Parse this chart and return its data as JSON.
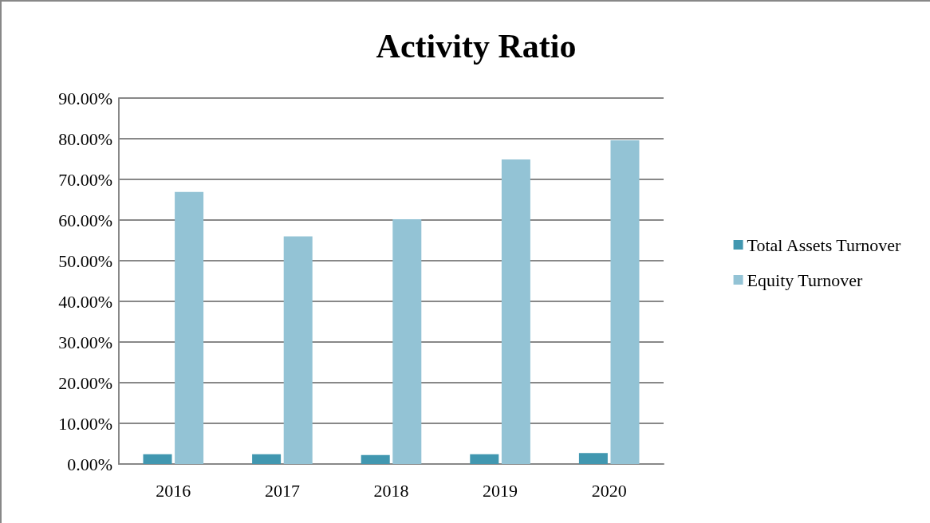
{
  "chart_data": {
    "type": "bar",
    "title": "Activity Ratio",
    "categories": [
      "2016",
      "2017",
      "2018",
      "2019",
      "2020"
    ],
    "series": [
      {
        "name": "Total Assets Turnover",
        "color": "#4197b0",
        "values": [
          2.4,
          2.4,
          2.2,
          2.4,
          2.7
        ]
      },
      {
        "name": "Equity Turnover",
        "color": "#93c3d5",
        "values": [
          66.9,
          56.0,
          60.2,
          74.9,
          79.6
        ]
      }
    ],
    "ylim": [
      0,
      90
    ],
    "yticks": [
      {
        "value": 0,
        "label": "0.00%"
      },
      {
        "value": 10,
        "label": "10.00%"
      },
      {
        "value": 20,
        "label": "20.00%"
      },
      {
        "value": 30,
        "label": "30.00%"
      },
      {
        "value": 40,
        "label": "40.00%"
      },
      {
        "value": 50,
        "label": "50.00%"
      },
      {
        "value": 60,
        "label": "60.00%"
      },
      {
        "value": 70,
        "label": "70.00%"
      },
      {
        "value": 80,
        "label": "80.00%"
      },
      {
        "value": 90,
        "label": "90.00%"
      }
    ],
    "grid": "y",
    "legend": "right"
  }
}
